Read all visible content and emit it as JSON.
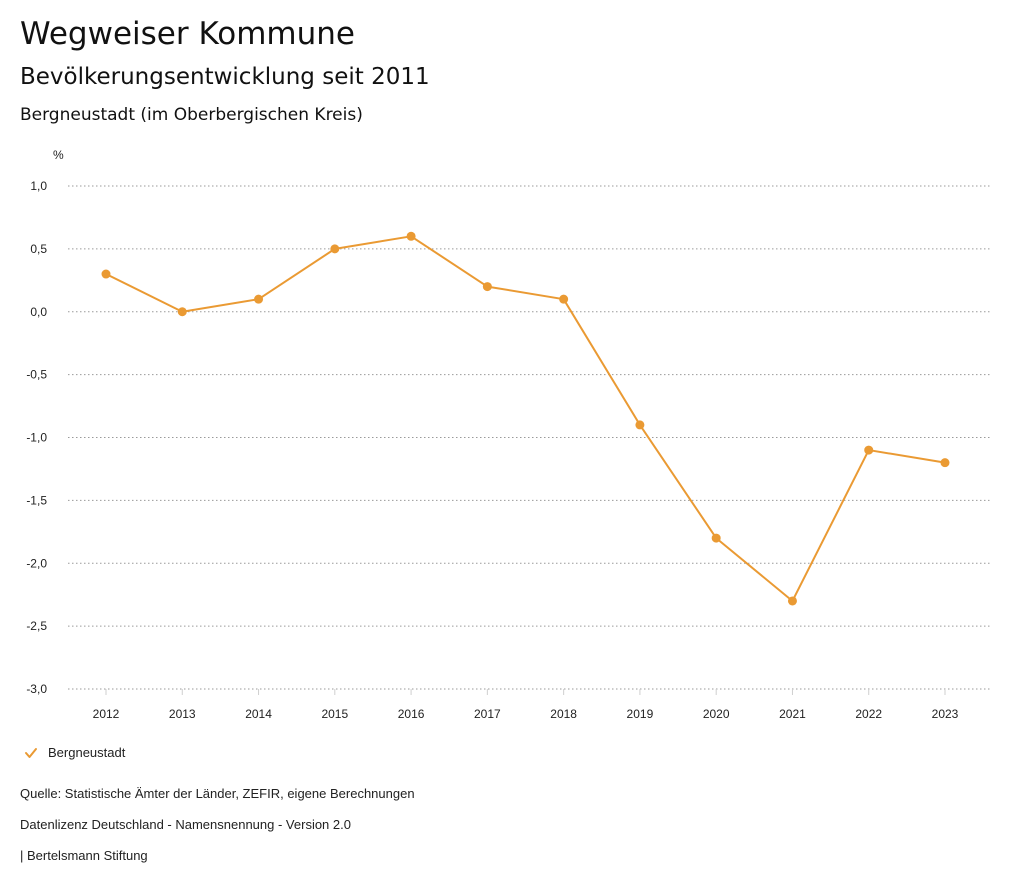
{
  "header": {
    "title": "Wegweiser Kommune",
    "subtitle": "Bevölkerungsentwicklung seit 2011",
    "region": "Bergneustadt (im Oberbergischen Kreis)"
  },
  "chart_data": {
    "type": "line",
    "ylabel": "%",
    "xlabel": "",
    "categories": [
      "2012",
      "2013",
      "2014",
      "2015",
      "2016",
      "2017",
      "2018",
      "2019",
      "2020",
      "2021",
      "2022",
      "2023"
    ],
    "series": [
      {
        "name": "Bergneustadt",
        "color": "#ea9a33",
        "values": [
          0.3,
          0.0,
          0.1,
          0.5,
          0.6,
          0.2,
          0.1,
          -0.9,
          -1.8,
          -2.3,
          -1.1,
          -1.2
        ]
      }
    ],
    "ylim": [
      -3.0,
      1.0
    ],
    "yticks": [
      1.0,
      0.5,
      0.0,
      -0.5,
      -1.0,
      -1.5,
      -2.0,
      -2.5,
      -3.0
    ],
    "ytick_labels": [
      "1,0",
      "0,5",
      "0,0",
      "-0,5",
      "-1,0",
      "-1,5",
      "-2,0",
      "-2,5",
      "-3,0"
    ],
    "grid": true,
    "legend": "bottom-left"
  },
  "legend": {
    "label": "Bergneustadt"
  },
  "footer": {
    "source": "Quelle: Statistische Ämter der Länder, ZEFIR, eigene Berechnungen",
    "license": "Datenlizenz Deutschland - Namensnennung - Version 2.0",
    "publisher": "| Bertelsmann Stiftung"
  }
}
